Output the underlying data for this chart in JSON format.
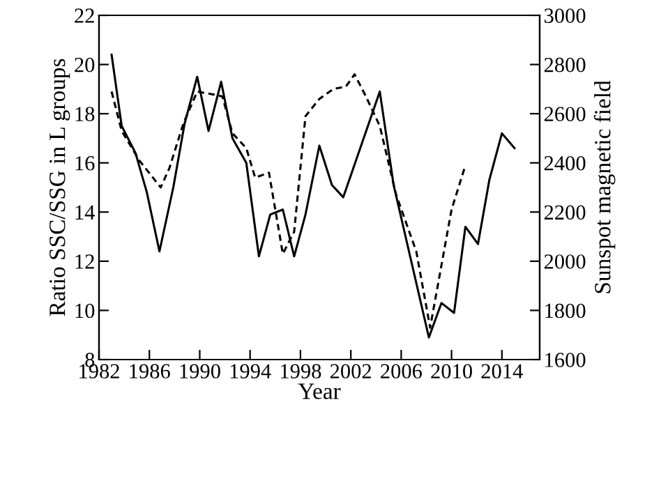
{
  "chart_data": {
    "type": "line",
    "xlabel": "Year",
    "ylabel": "Ratio SSC/SSG in L groups",
    "y2label": "Sunspot magnetic field",
    "xlim": [
      1982,
      2017
    ],
    "xticks": [
      1982,
      1986,
      1990,
      1994,
      1998,
      2002,
      2006,
      2010,
      2014
    ],
    "ylim": [
      8,
      22
    ],
    "yticks": [
      8,
      10,
      12,
      14,
      16,
      18,
      20,
      22
    ],
    "y2lim": [
      1600,
      3000
    ],
    "y2ticks": [
      1600,
      1800,
      2000,
      2200,
      2400,
      2600,
      2800,
      3000
    ],
    "grid": false,
    "marker": "none",
    "series": [
      {
        "color": "#000000",
        "line_style": "solid",
        "x": [
          1983.0,
          1983.8,
          1984.9,
          1985.8,
          1986.8,
          1987.9,
          1988.8,
          1989.8,
          1990.7,
          1991.7,
          1992.6,
          1993.7,
          1994.7,
          1995.6,
          1996.6,
          1997.5,
          1998.4,
          1999.5,
          2000.5,
          2001.4,
          2004.3,
          2005.4,
          2008.2,
          2009.2,
          2010.2,
          2011.1,
          2012.1,
          2013.0,
          2014.0,
          2015.0
        ],
        "values": [
          20.4,
          17.5,
          16.4,
          14.8,
          12.4,
          15.0,
          17.6,
          19.5,
          17.3,
          19.3,
          17.0,
          16.0,
          12.2,
          13.9,
          14.1,
          12.2,
          13.9,
          16.7,
          15.1,
          14.6,
          18.9,
          15.1,
          8.9,
          10.3,
          9.9,
          13.4,
          12.7,
          15.3,
          17.2,
          16.6
        ]
      },
      {
        "color": "#000000",
        "line_style": "dashed",
        "axis": "y2",
        "x": [
          1983.0,
          1983.8,
          1985.2,
          1986.9,
          1987.6,
          1988.7,
          1989.8,
          1990.9,
          1991.8,
          1992.6,
          1993.7,
          1994.4,
          1995.5,
          1996.6,
          1997.5,
          1998.4,
          1999.5,
          2000.6,
          2001.6,
          2002.3,
          2003.2,
          2004.3,
          2005.6,
          2007.2,
          2008.3,
          2010.0,
          2011.1
        ],
        "values": [
          2690,
          2530,
          2410,
          2300,
          2380,
          2560,
          2690,
          2680,
          2670,
          2520,
          2460,
          2340,
          2360,
          2030,
          2120,
          2590,
          2660,
          2700,
          2710,
          2760,
          2670,
          2550,
          2270,
          2040,
          1730,
          2210,
          2390
        ]
      }
    ]
  }
}
